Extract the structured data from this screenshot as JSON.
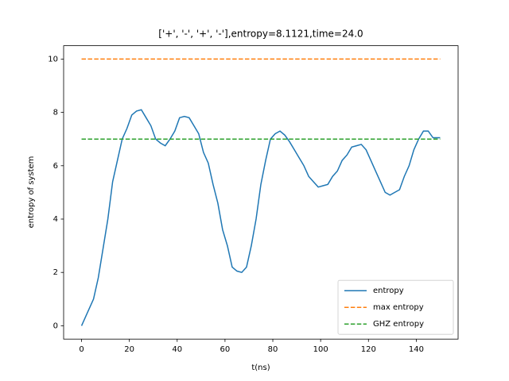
{
  "chart_data": {
    "type": "line",
    "title": "['+', '-', '+', '-'],entropy=8.1121,time=24.0",
    "xlabel": "t(ns)",
    "ylabel": "entropy of system",
    "xlim": [
      -7.5,
      157.5
    ],
    "ylim": [
      -0.5,
      10.5
    ],
    "xticks": [
      0,
      20,
      40,
      60,
      80,
      100,
      120,
      140
    ],
    "yticks": [
      0,
      2,
      4,
      6,
      8,
      10
    ],
    "legend": "lower right",
    "series": [
      {
        "name": "entropy",
        "color": "#1f77b4",
        "dashed": false,
        "x": [
          0,
          2,
          5,
          7,
          9,
          11,
          13,
          15,
          17,
          19,
          21,
          23,
          25,
          27,
          29,
          31,
          33,
          35,
          37,
          39,
          41,
          43,
          45,
          47,
          49,
          51,
          53,
          55,
          57,
          59,
          61,
          63,
          65,
          67,
          69,
          71,
          73,
          75,
          77,
          79,
          81,
          83,
          85,
          87,
          89,
          91,
          93,
          95,
          97,
          99,
          101,
          103,
          105,
          107,
          109,
          111,
          113,
          115,
          117,
          119,
          121,
          123,
          125,
          127,
          129,
          131,
          133,
          135,
          137,
          139,
          141,
          143,
          145,
          147,
          150
        ],
        "values": [
          0,
          0.4,
          1.0,
          1.8,
          2.9,
          4.0,
          5.4,
          6.2,
          7.0,
          7.4,
          7.9,
          8.05,
          8.1,
          7.8,
          7.5,
          7.0,
          6.85,
          6.75,
          7.0,
          7.3,
          7.8,
          7.85,
          7.8,
          7.5,
          7.2,
          6.5,
          6.1,
          5.3,
          4.6,
          3.6,
          3.0,
          2.2,
          2.05,
          2.0,
          2.2,
          3.0,
          4.0,
          5.3,
          6.2,
          7.0,
          7.2,
          7.3,
          7.15,
          6.9,
          6.6,
          6.3,
          6.0,
          5.6,
          5.4,
          5.2,
          5.25,
          5.3,
          5.6,
          5.8,
          6.2,
          6.4,
          6.7,
          6.75,
          6.8,
          6.6,
          6.2,
          5.8,
          5.4,
          5.0,
          4.9,
          5.0,
          5.1,
          5.6,
          6.0,
          6.6,
          7.0,
          7.3,
          7.3,
          7.05,
          7.05
        ]
      },
      {
        "name": "max entropy",
        "color": "#ff7f0e",
        "dashed": true,
        "x": [
          0,
          150
        ],
        "values": [
          10,
          10
        ]
      },
      {
        "name": "GHZ entropy",
        "color": "#2ca02c",
        "dashed": true,
        "x": [
          0,
          150
        ],
        "values": [
          7,
          7
        ]
      }
    ]
  }
}
